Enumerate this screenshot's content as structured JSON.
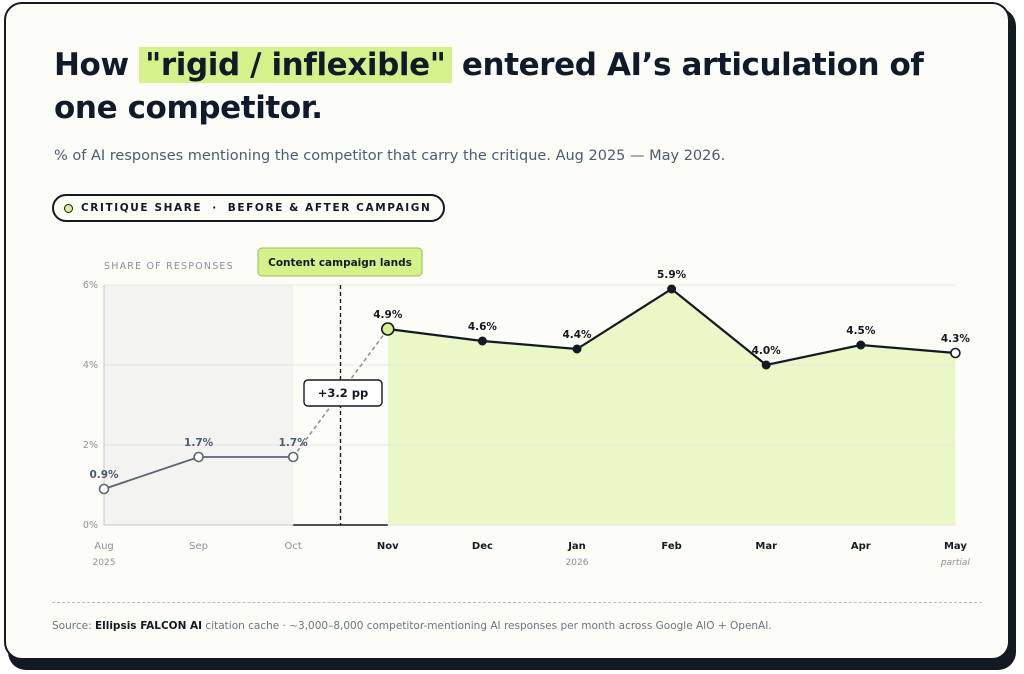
{
  "title": {
    "before": "How ",
    "highlight": "\"rigid / inflexible\"",
    "after": " entered AI’s articulation of one competitor."
  },
  "subtitle": "% of AI responses mentioning the competitor that carry the critique. Aug 2025 — May 2026.",
  "legend_pill": {
    "series": "CRITIQUE SHARE",
    "separator": "·",
    "context": "BEFORE & AFTER CAMPAIGN"
  },
  "footnote": {
    "prefix": "Source: ",
    "source": "Ellipsis FALCON AI",
    "rest": " citation cache · ~3,000–8,000 competitor-mentioning AI responses per month across Google AIO + OpenAI."
  },
  "colors": {
    "accent": "#d5f28a",
    "after_fill": "#eaf7c7",
    "before_band": "#f3f3f1",
    "before_line": "#5c6470",
    "after_line": "#131a24",
    "before_label": "#4a5b76"
  },
  "chart_data": {
    "type": "line",
    "ylabel": "SHARE OF RESPONSES",
    "ylim": [
      0,
      6
    ],
    "yticks": [
      0,
      2,
      4,
      6
    ],
    "ytick_labels": [
      "0%",
      "2%",
      "4%",
      "6%"
    ],
    "categories": [
      "Aug",
      "Sep",
      "Oct",
      "Nov",
      "Dec",
      "Jan",
      "Feb",
      "Mar",
      "Apr",
      "May"
    ],
    "category_sublabels": [
      "2025",
      "",
      "",
      "",
      "",
      "2026",
      "",
      "",
      "",
      "partial"
    ],
    "values": [
      0.9,
      1.7,
      1.7,
      4.9,
      4.6,
      4.4,
      5.9,
      4.0,
      4.5,
      4.3
    ],
    "value_labels": [
      "0.9%",
      "1.7%",
      "1.7%",
      "4.9%",
      "4.6%",
      "4.4%",
      "5.9%",
      "4.0%",
      "4.5%",
      "4.3%"
    ],
    "before_indices": [
      0,
      1,
      2
    ],
    "after_indices": [
      3,
      4,
      5,
      6,
      7,
      8,
      9
    ],
    "grid": true,
    "annotations": {
      "campaign": "Content campaign lands",
      "jump": "+3.2 pp"
    }
  }
}
